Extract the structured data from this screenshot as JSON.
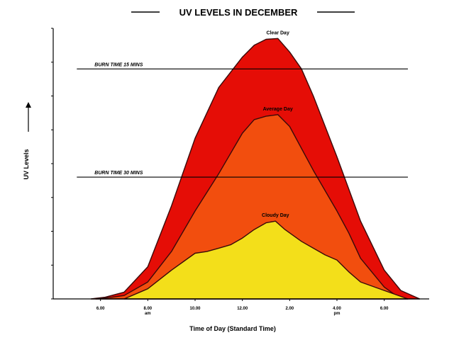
{
  "chart_data": {
    "type": "area",
    "title": "UV LEVELS IN DECEMBER",
    "xlabel": "Time of Day (Standard Time)",
    "ylabel": "UV Levels",
    "x_ticks": [
      {
        "x": 6,
        "label": "6.00",
        "sub": ""
      },
      {
        "x": 8,
        "label": "8.00",
        "sub": "am"
      },
      {
        "x": 10,
        "label": "10.00",
        "sub": ""
      },
      {
        "x": 12,
        "label": "12.00",
        "sub": ""
      },
      {
        "x": 14,
        "label": "2.00",
        "sub": ""
      },
      {
        "x": 16,
        "label": "4.00",
        "sub": "pm"
      },
      {
        "x": 18,
        "label": "6.00",
        "sub": ""
      }
    ],
    "xlim": [
      4.0,
      19.9
    ],
    "ylim": [
      0,
      16
    ],
    "series": [
      {
        "name": "Clear Day",
        "color": "#e50d06",
        "points": [
          [
            5.6,
            0
          ],
          [
            6.2,
            0.1
          ],
          [
            7,
            0.4
          ],
          [
            8,
            1.9
          ],
          [
            9,
            5.5
          ],
          [
            10,
            9.5
          ],
          [
            11,
            12.5
          ],
          [
            12,
            14.3
          ],
          [
            12.5,
            15
          ],
          [
            13,
            15.35
          ],
          [
            13.5,
            15.4
          ],
          [
            14,
            14.6
          ],
          [
            14.5,
            13.6
          ],
          [
            15,
            12
          ],
          [
            16,
            8.4
          ],
          [
            17,
            4.6
          ],
          [
            18,
            1.7
          ],
          [
            18.7,
            0.5
          ],
          [
            19.5,
            0
          ]
        ]
      },
      {
        "name": "Average Day",
        "color": "#f24e0e",
        "points": [
          [
            5.8,
            0
          ],
          [
            6.5,
            0.1
          ],
          [
            7,
            0.2
          ],
          [
            8,
            1
          ],
          [
            9,
            2.8
          ],
          [
            10,
            5.2
          ],
          [
            11,
            7.4
          ],
          [
            12,
            9.8
          ],
          [
            12.5,
            10.6
          ],
          [
            13,
            10.8
          ],
          [
            13.5,
            10.9
          ],
          [
            14,
            10.2
          ],
          [
            15,
            7.6
          ],
          [
            16,
            5.2
          ],
          [
            16.5,
            3.9
          ],
          [
            17,
            2.4
          ],
          [
            18,
            0.7
          ],
          [
            18.5,
            0.2
          ],
          [
            19,
            0
          ]
        ]
      },
      {
        "name": "Cloudy Day",
        "color": "#f3df1a",
        "points": [
          [
            7,
            0
          ],
          [
            8,
            0.6
          ],
          [
            9,
            1.7
          ],
          [
            9.5,
            2.2
          ],
          [
            10,
            2.7
          ],
          [
            10.5,
            2.8
          ],
          [
            11,
            3
          ],
          [
            11.5,
            3.2
          ],
          [
            12,
            3.6
          ],
          [
            12.5,
            4.1
          ],
          [
            13,
            4.5
          ],
          [
            13.4,
            4.6
          ],
          [
            13.8,
            4.1
          ],
          [
            14.5,
            3.4
          ],
          [
            15,
            3
          ],
          [
            15.5,
            2.6
          ],
          [
            16,
            2.3
          ],
          [
            16.5,
            1.6
          ],
          [
            17,
            1
          ],
          [
            18,
            0.5
          ],
          [
            19,
            0
          ]
        ]
      }
    ],
    "reference_lines": [
      {
        "label": "BURN TIME 15 MINS",
        "y": 13.6,
        "x_start": 5.0,
        "x_end": 19.0
      },
      {
        "label": "BURN TIME 30 MINS",
        "y": 7.2,
        "x_start": 5.0,
        "x_end": 19.0
      }
    ],
    "grid": false,
    "legend": "none"
  }
}
